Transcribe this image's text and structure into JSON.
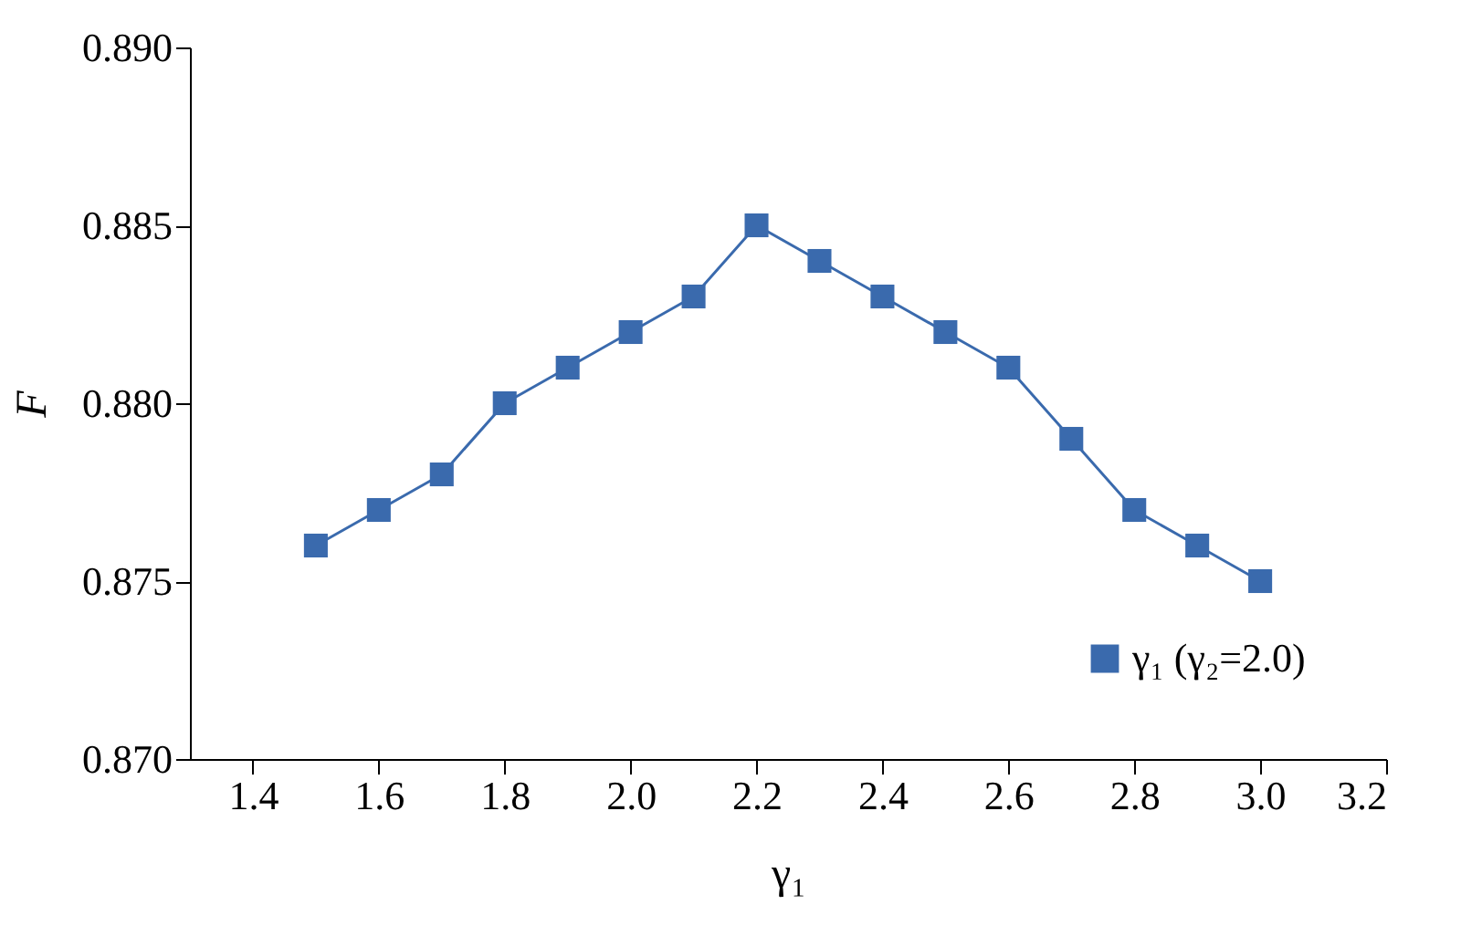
{
  "chart_data": {
    "type": "line",
    "xlabel": "γ₁",
    "ylabel": "F",
    "x": [
      1.5,
      1.6,
      1.7,
      1.8,
      1.9,
      2.0,
      2.1,
      2.2,
      2.3,
      2.4,
      2.5,
      2.6,
      2.7,
      2.8,
      2.9,
      3.0
    ],
    "series": [
      {
        "name": "γ₁ (γ₂=2.0)",
        "color": "#3a6aad",
        "values": [
          0.876,
          0.877,
          0.878,
          0.88,
          0.881,
          0.882,
          0.883,
          0.885,
          0.884,
          0.883,
          0.882,
          0.881,
          0.879,
          0.877,
          0.876,
          0.875
        ]
      }
    ],
    "xlim": [
      1.3,
      3.2
    ],
    "xticks": [
      1.4,
      1.6,
      1.8,
      {
        "value": 2.0,
        "label": "2.0"
      },
      2.2,
      2.4,
      2.6,
      2.8,
      {
        "value": 3.0,
        "label": "3.0"
      },
      3.2
    ],
    "ylim": [
      0.87,
      0.89
    ],
    "yticks": [
      {
        "value": 0.87,
        "label": "0.870"
      },
      0.875,
      {
        "value": 0.88,
        "label": "0.880"
      },
      0.885,
      {
        "value": 0.89,
        "label": "0.890"
      }
    ],
    "grid": false,
    "legend": "bottom right",
    "marker": "square",
    "line_style": "solid"
  }
}
